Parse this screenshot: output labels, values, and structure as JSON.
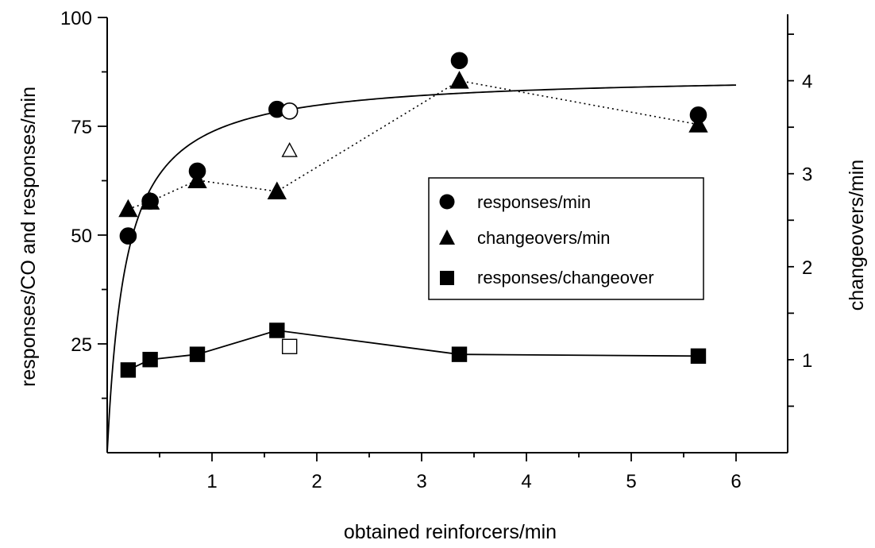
{
  "chart_data": {
    "type": "scatter",
    "title": "",
    "xlabel": "obtained reinforcers/min",
    "ylabel_left": "responses/CO and responses/min",
    "ylabel_right": "changeovers/min",
    "x_ticks": [
      "1",
      "2",
      "3",
      "4",
      "5",
      "6"
    ],
    "y_left_ticks": [
      "25",
      "50",
      "75",
      "100"
    ],
    "y_right_ticks": [
      "1",
      "2",
      "3",
      "4"
    ],
    "xlim": [
      0,
      6.5
    ],
    "ylim_left": [
      0,
      100
    ],
    "ylim_right": [
      0,
      4.68
    ],
    "grid": false,
    "legend_position": "center-right",
    "legend": [
      {
        "label": "responses/min",
        "marker": "circle"
      },
      {
        "label": "changeovers/min",
        "marker": "triangle"
      },
      {
        "label": "responses/changeover",
        "marker": "square"
      }
    ],
    "series": [
      {
        "name": "responses/min",
        "axis": "left",
        "marker": "circle",
        "connect": "none",
        "filled": {
          "x": [
            0.2,
            0.41,
            0.86,
            1.62,
            3.36,
            5.64
          ],
          "y": [
            49.8,
            57.8,
            64.7,
            78.9,
            90.1,
            77.6
          ]
        },
        "open": {
          "x": [
            1.74
          ],
          "y": [
            78.5
          ]
        }
      },
      {
        "name": "changeovers/min",
        "axis": "right",
        "marker": "triangle",
        "connect": "dotted",
        "filled": {
          "x": [
            0.2,
            0.41,
            0.86,
            1.62,
            3.36,
            5.64
          ],
          "y": [
            2.62,
            2.7,
            2.93,
            2.81,
            4.0,
            3.53
          ]
        },
        "open": {
          "x": [
            1.74
          ],
          "y": [
            3.25
          ]
        }
      },
      {
        "name": "responses/changeover",
        "axis": "left",
        "marker": "square",
        "connect": "solid",
        "filled": {
          "x": [
            0.2,
            0.41,
            0.86,
            1.62,
            3.36,
            5.64
          ],
          "y": [
            19.0,
            21.4,
            22.6,
            28.1,
            22.6,
            22.2
          ]
        },
        "open": {
          "x": [
            1.74
          ],
          "y": [
            24.4
          ]
        }
      }
    ],
    "fit_curve": {
      "axis": "left",
      "description_free": true,
      "x_range": [
        0.02,
        6.0
      ],
      "params": {
        "k": 87,
        "c": 0.18
      }
    }
  }
}
